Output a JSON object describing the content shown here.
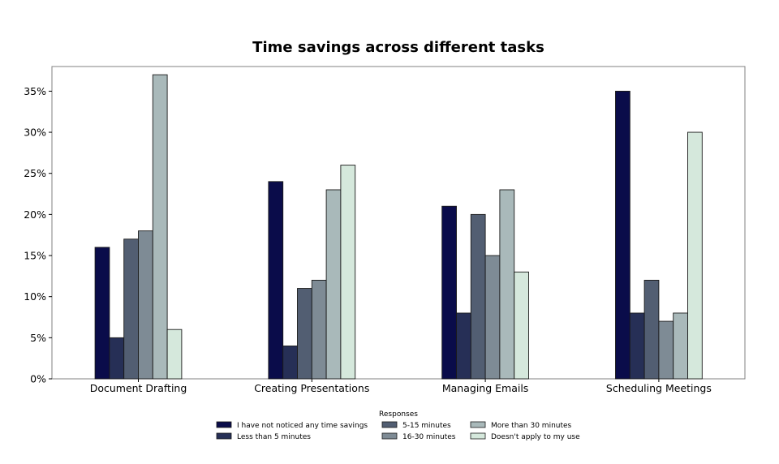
{
  "chart_data": {
    "type": "bar",
    "title": "Time savings across different tasks",
    "xlabel": "",
    "ylabel": "",
    "categories": [
      "Document Drafting",
      "Creating Presentations",
      "Managing Emails",
      "Scheduling Meetings"
    ],
    "ylim": [
      0,
      38
    ],
    "yticks": [
      0,
      5,
      10,
      15,
      20,
      25,
      30,
      35
    ],
    "ytick_labels": [
      "0%",
      "5%",
      "10%",
      "15%",
      "20%",
      "25%",
      "30%",
      "35%"
    ],
    "grid": false,
    "legend": {
      "title": "Responses",
      "placement": "bottom-center",
      "columns": 3
    },
    "series": [
      {
        "name": "I have not noticed any time savings",
        "color": "#0a0c4a",
        "values": [
          16,
          24,
          21,
          35
        ]
      },
      {
        "name": "Less than 5 minutes",
        "color": "#262f56",
        "values": [
          5,
          4,
          8,
          8
        ]
      },
      {
        "name": "5-15 minutes",
        "color": "#525e72",
        "values": [
          17,
          11,
          20,
          12
        ]
      },
      {
        "name": "16-30 minutes",
        "color": "#7e8b95",
        "values": [
          18,
          12,
          15,
          7
        ]
      },
      {
        "name": "More than 30 minutes",
        "color": "#a9b9ba",
        "values": [
          37,
          23,
          23,
          8
        ]
      },
      {
        "name": "Doesn't apply to my use",
        "color": "#d5e8dc",
        "values": [
          6,
          26,
          13,
          30
        ]
      }
    ]
  }
}
